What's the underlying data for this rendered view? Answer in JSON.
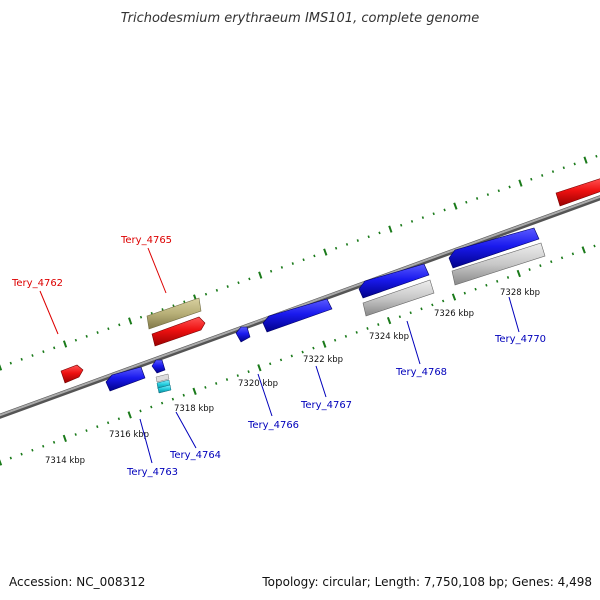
{
  "title": "Trichodesmium erythraeum IMS101, complete genome",
  "footer": {
    "accession": "Accession: NC_008312",
    "summary": "Topology: circular; Length: 7,750,108 bp; Genes: 4,498"
  },
  "colors": {
    "forward_gene": "#ee1111",
    "reverse_gene": "#1a1aee",
    "forward_label": "#dd0000",
    "reverse_label": "#0000bb",
    "tick": "#1a7a1a",
    "backbone": "#888888",
    "olive_feature": "#b8b078",
    "grey_feature": "#c8c8c8",
    "cyan_feature": "#22ccdd"
  },
  "kbp_labels": [
    "7314 kbp",
    "7316 kbp",
    "7318 kbp",
    "7320 kbp",
    "7322 kbp",
    "7324 kbp",
    "7326 kbp",
    "7328 kbp"
  ],
  "gene_labels": [
    {
      "text": "Tery_4762",
      "strand": "forward"
    },
    {
      "text": "Tery_4765",
      "strand": "forward"
    },
    {
      "text": "Tery_4763",
      "strand": "reverse"
    },
    {
      "text": "Tery_4764",
      "strand": "reverse"
    },
    {
      "text": "Tery_4766",
      "strand": "reverse"
    },
    {
      "text": "Tery_4767",
      "strand": "reverse"
    },
    {
      "text": "Tery_4768",
      "strand": "reverse"
    },
    {
      "text": "Tery_4770",
      "strand": "reverse"
    }
  ]
}
